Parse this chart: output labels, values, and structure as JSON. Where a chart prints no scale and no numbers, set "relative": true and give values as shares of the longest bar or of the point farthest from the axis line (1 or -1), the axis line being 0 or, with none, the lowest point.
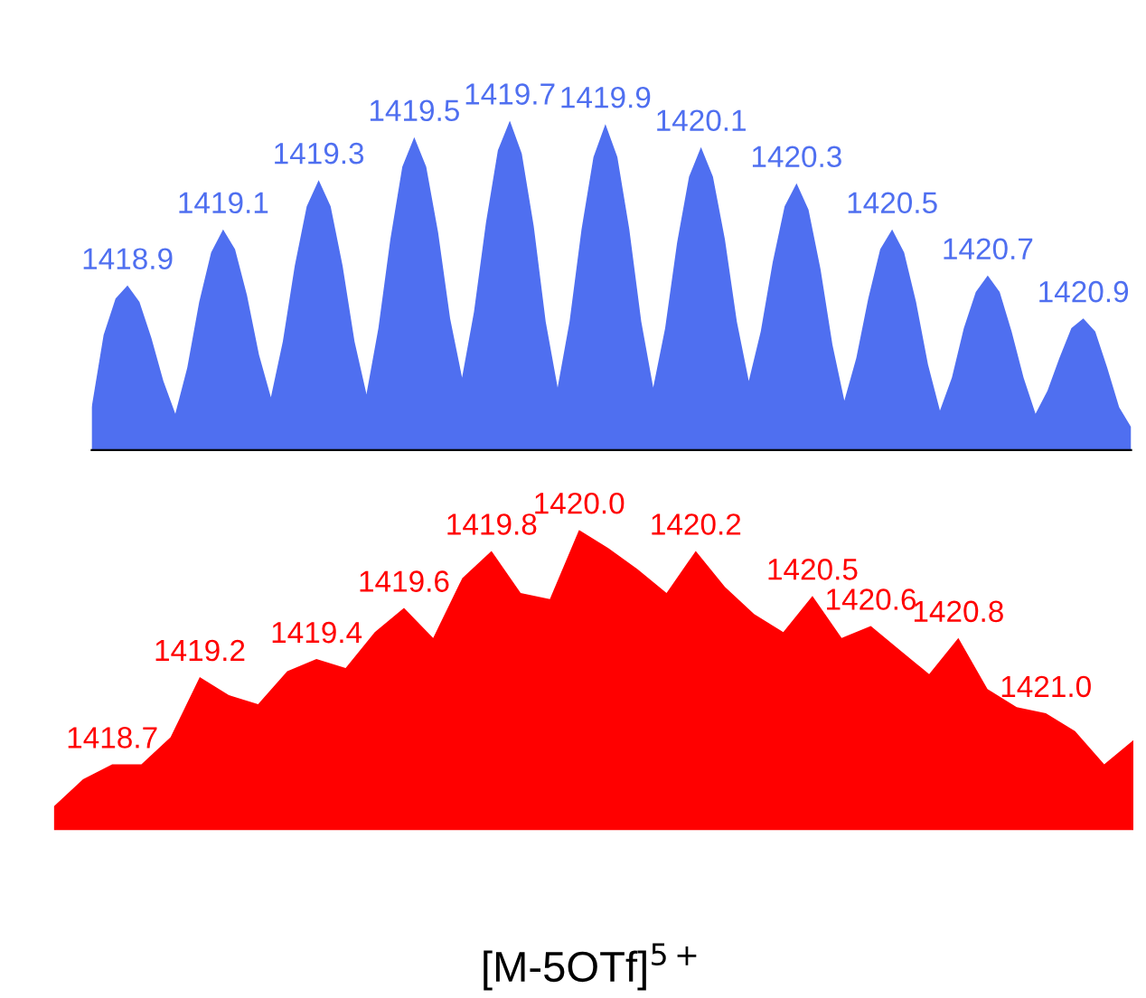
{
  "chart_data": [
    {
      "type": "area",
      "relative": true,
      "color": "#4f6ff0",
      "categories": [
        null,
        null,
        null,
        null,
        null,
        null,
        null,
        null,
        null,
        null,
        null,
        null,
        null,
        null,
        null,
        null,
        null,
        null,
        null,
        null,
        null,
        null,
        null,
        null,
        null,
        null,
        null,
        null,
        null,
        null,
        null,
        null,
        null,
        null,
        null,
        null,
        null,
        null,
        null,
        null,
        null,
        null,
        null,
        null,
        null,
        null,
        null,
        null,
        null,
        null,
        null,
        null,
        null,
        null,
        null,
        null,
        null,
        null,
        null,
        null,
        null,
        null,
        null,
        null,
        null,
        null,
        null,
        null,
        null,
        null,
        null,
        null,
        null,
        null,
        null,
        null,
        null,
        null,
        null,
        null,
        null,
        null,
        null,
        null,
        null,
        null,
        null,
        null
      ],
      "values": [
        0.13,
        0.35,
        0.46,
        0.5,
        0.45,
        0.34,
        0.21,
        0.11,
        0.25,
        0.45,
        0.6,
        0.67,
        0.61,
        0.47,
        0.29,
        0.16,
        0.33,
        0.56,
        0.74,
        0.82,
        0.74,
        0.56,
        0.33,
        0.17,
        0.37,
        0.64,
        0.86,
        0.95,
        0.86,
        0.66,
        0.4,
        0.22,
        0.42,
        0.69,
        0.91,
        1,
        0.9,
        0.68,
        0.39,
        0.19,
        0.39,
        0.67,
        0.89,
        0.99,
        0.89,
        0.67,
        0.39,
        0.19,
        0.37,
        0.63,
        0.83,
        0.92,
        0.83,
        0.64,
        0.39,
        0.21,
        0.36,
        0.57,
        0.74,
        0.81,
        0.73,
        0.55,
        0.32,
        0.15,
        0.28,
        0.46,
        0.61,
        0.67,
        0.6,
        0.45,
        0.26,
        0.12,
        0.22,
        0.37,
        0.48,
        0.53,
        0.48,
        0.36,
        0.22,
        0.11,
        0.18,
        0.28,
        0.37,
        0.4,
        0.36,
        0.25,
        0.13,
        0.07
      ],
      "annotations": [
        {
          "text": "1418.9",
          "y": 0.5
        },
        {
          "text": "1419.1",
          "y": 0.67
        },
        {
          "text": "1419.3",
          "y": 0.82
        },
        {
          "text": "1419.5",
          "y": 0.95
        },
        {
          "text": "1419.7",
          "y": 1
        },
        {
          "text": "1419.9",
          "y": 0.99
        },
        {
          "text": "1420.1",
          "y": 0.92
        },
        {
          "text": "1420.3",
          "y": 0.81
        },
        {
          "text": "1420.5",
          "y": 0.67
        },
        {
          "text": "1420.7",
          "y": 0.53
        },
        {
          "text": "1420.9",
          "y": 0.4
        }
      ]
    },
    {
      "type": "area",
      "relative": true,
      "color": "#ff0000",
      "xlabel": "[M-5OTf]$^{5+}$",
      "categories": [
        null,
        null,
        null,
        null,
        null,
        null,
        null,
        null,
        null,
        null,
        null,
        null,
        null,
        null,
        null,
        null,
        null,
        null,
        null,
        null,
        null,
        null,
        null,
        null,
        null,
        null,
        null,
        null,
        null,
        null,
        null,
        null,
        null,
        null,
        null,
        null,
        null,
        null
      ],
      "values": [
        0.08,
        0.17,
        0.22,
        0.22,
        0.31,
        0.51,
        0.45,
        0.42,
        0.53,
        0.57,
        0.54,
        0.66,
        0.74,
        0.64,
        0.84,
        0.93,
        0.79,
        0.77,
        1,
        0.94,
        0.87,
        0.79,
        0.93,
        0.81,
        0.72,
        0.66,
        0.78,
        0.64,
        0.68,
        0.6,
        0.52,
        0.64,
        0.47,
        0.41,
        0.39,
        0.33,
        0.22,
        0.3
      ],
      "annotations": [
        {
          "text": "1418.7",
          "y": 0.22
        },
        {
          "text": "1419.2",
          "y": 0.51
        },
        {
          "text": "1419.4",
          "y": 0.57
        },
        {
          "text": "1419.6",
          "y": 0.74
        },
        {
          "text": "1419.8",
          "y": 0.93
        },
        {
          "text": "1420.0",
          "y": 1
        },
        {
          "text": "1420.2",
          "y": 0.93
        },
        {
          "text": "1420.5",
          "y": 0.78
        },
        {
          "text": "1420.6",
          "y": 0.68
        },
        {
          "text": "1420.8",
          "y": 0.64
        },
        {
          "text": "1421.0",
          "y": 0.39
        }
      ]
    }
  ]
}
